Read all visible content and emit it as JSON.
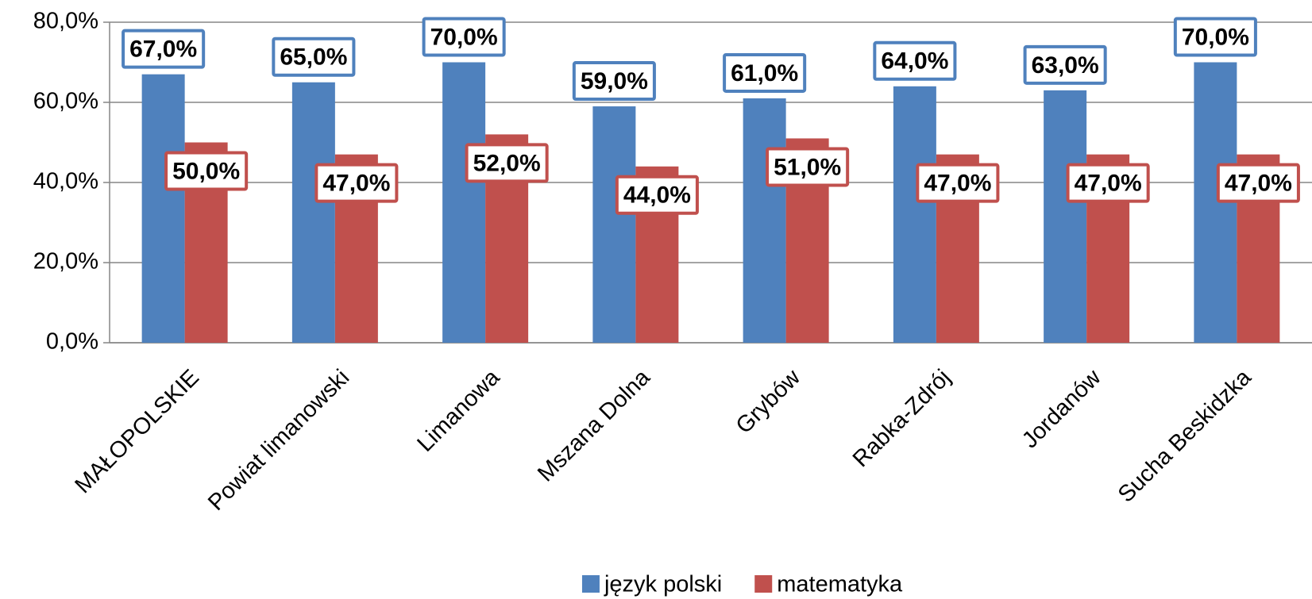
{
  "chart_data": {
    "type": "bar",
    "categories": [
      "MAŁOPOLSKIE",
      "Powiat limanowski",
      "Limanowa",
      "Mszana Dolna",
      "Grybów",
      "Rabka-Zdrój",
      "Jordanów",
      "Sucha Beskidzka"
    ],
    "series": [
      {
        "name": "język polski",
        "color": "#4f81bd",
        "values": [
          67,
          65,
          70,
          59,
          61,
          64,
          63,
          70
        ],
        "value_labels": [
          "67,0%",
          "65,0%",
          "70,0%",
          "59,0%",
          "61,0%",
          "64,0%",
          "63,0%",
          "70,0%"
        ]
      },
      {
        "name": "matematyka",
        "color": "#c0504d",
        "values": [
          50,
          47,
          52,
          44,
          51,
          47,
          47,
          47
        ],
        "value_labels": [
          "50,0%",
          "47,0%",
          "52,0%",
          "44,0%",
          "51,0%",
          "47,0%",
          "47,0%",
          "47,0%"
        ]
      }
    ],
    "ylim": [
      0,
      80
    ],
    "yticks": [
      {
        "value": 0,
        "label": "0,0%"
      },
      {
        "value": 20,
        "label": "20,0%"
      },
      {
        "value": 40,
        "label": "40,0%"
      },
      {
        "value": 60,
        "label": "60,0%"
      },
      {
        "value": 80,
        "label": "80,0%"
      }
    ],
    "grid": true,
    "legend": "bottom"
  }
}
